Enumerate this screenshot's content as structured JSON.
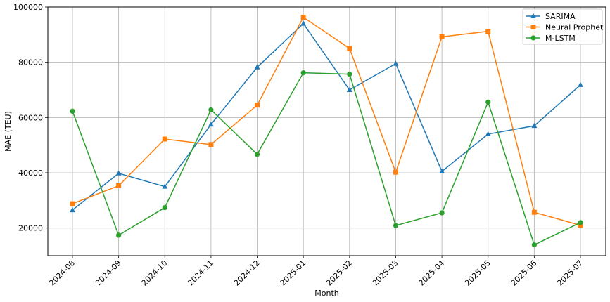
{
  "chart_data": {
    "type": "line",
    "title": "",
    "xlabel": "Month",
    "ylabel": "MAE (TEU)",
    "categories": [
      "2024-08",
      "2024-09",
      "2024-10",
      "2024-11",
      "2024-12",
      "2025-01",
      "2025-02",
      "2025-03",
      "2025-04",
      "2025-05",
      "2025-06",
      "2025-07"
    ],
    "ylim": [
      10000,
      100000
    ],
    "yticks": [
      20000,
      40000,
      60000,
      80000,
      100000
    ],
    "ytick_labels": [
      "20000",
      "40000",
      "60000",
      "80000",
      "100000"
    ],
    "grid": true,
    "legend_position": "top-right",
    "series": [
      {
        "name": "SARIMA",
        "color": "#1f77b4",
        "marker": "triangle",
        "values": [
          26500,
          39800,
          35000,
          57500,
          78200,
          94000,
          70000,
          79500,
          40500,
          54000,
          57000,
          71800
        ]
      },
      {
        "name": "Neural Prophet",
        "color": "#ff7f0e",
        "marker": "square",
        "values": [
          28800,
          35300,
          52200,
          50200,
          64500,
          96300,
          85000,
          40200,
          89200,
          91200,
          25700,
          21000
        ]
      },
      {
        "name": "M-LSTM",
        "color": "#2ca02c",
        "marker": "circle",
        "values": [
          62300,
          17400,
          27400,
          62800,
          46700,
          76200,
          75700,
          20900,
          25500,
          65600,
          13900,
          22000
        ]
      }
    ]
  }
}
